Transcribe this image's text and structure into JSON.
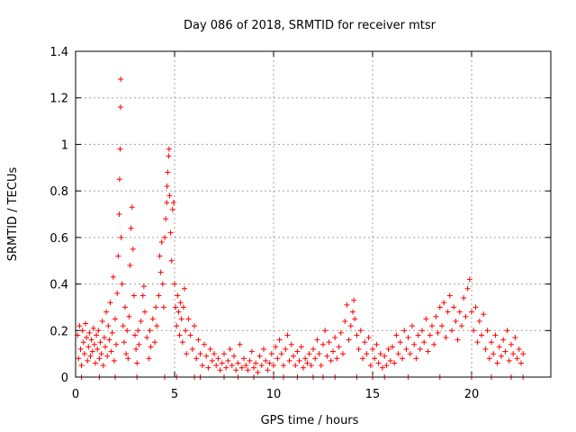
{
  "chart_data": {
    "type": "scatter",
    "title": "Day 086 of 2018, SRMTID for receiver mtsr",
    "xlabel": "GPS time / hours",
    "ylabel": "SRMTID / TECUs",
    "xlim": [
      0,
      24
    ],
    "ylim": [
      0,
      1.4
    ],
    "x_ticks": [
      0,
      5,
      10,
      15,
      20
    ],
    "y_ticks": [
      0,
      0.2,
      0.4,
      0.6,
      0.8,
      1,
      1.2,
      1.4
    ],
    "x_tick_labels": [
      "0",
      "5",
      "10",
      "15",
      "20"
    ],
    "y_tick_labels": [
      "0",
      "0.2",
      "0.4",
      "0.6",
      "0.8",
      "1",
      "1.2",
      "1.4"
    ],
    "grid": true,
    "marker": "+",
    "color": "#ff0000",
    "series": [
      {
        "name": "SRMTID",
        "points": [
          [
            0.1,
            0.18
          ],
          [
            0.15,
            0.08
          ],
          [
            0.2,
            0.22
          ],
          [
            0.25,
            0.12
          ],
          [
            0.3,
            0.05
          ],
          [
            0.35,
            0.2
          ],
          [
            0.4,
            0.15
          ],
          [
            0.45,
            0.1
          ],
          [
            0.5,
            0.23
          ],
          [
            0.55,
            0.17
          ],
          [
            0.6,
            0.07
          ],
          [
            0.65,
            0.13
          ],
          [
            0.7,
            0.19
          ],
          [
            0.75,
            0.09
          ],
          [
            0.8,
            0.16
          ],
          [
            0.85,
            0.11
          ],
          [
            0.9,
            0.21
          ],
          [
            0.95,
            0.14
          ],
          [
            1.0,
            0.06
          ],
          [
            1.05,
            0.18
          ],
          [
            1.1,
            0.12
          ],
          [
            1.15,
            0.2
          ],
          [
            1.2,
            0.08
          ],
          [
            1.25,
            0.15
          ],
          [
            1.3,
            0.1
          ],
          [
            1.35,
            0.24
          ],
          [
            1.4,
            0.05
          ],
          [
            1.45,
            0.17
          ],
          [
            1.5,
            0.13
          ],
          [
            1.55,
            0.28
          ],
          [
            1.6,
            0.09
          ],
          [
            1.65,
            0.22
          ],
          [
            1.7,
            0.16
          ],
          [
            1.75,
            0.32
          ],
          [
            1.8,
            0.11
          ],
          [
            1.85,
            0.19
          ],
          [
            1.9,
            0.43
          ],
          [
            1.95,
            0.07
          ],
          [
            2.0,
            0.25
          ],
          [
            2.05,
            0.14
          ],
          [
            2.1,
            0.36
          ],
          [
            2.15,
            0.52
          ],
          [
            2.2,
            0.7
          ],
          [
            2.22,
            0.85
          ],
          [
            2.25,
            0.98
          ],
          [
            2.27,
            1.16
          ],
          [
            2.28,
            1.28
          ],
          [
            2.3,
            0.6
          ],
          [
            2.35,
            0.4
          ],
          [
            2.4,
            0.22
          ],
          [
            2.45,
            0.15
          ],
          [
            2.5,
            0.3
          ],
          [
            2.55,
            0.1
          ],
          [
            2.6,
            0.2
          ],
          [
            2.65,
            0.08
          ],
          [
            2.7,
            0.26
          ],
          [
            2.75,
            0.48
          ],
          [
            2.8,
            0.64
          ],
          [
            2.85,
            0.73
          ],
          [
            2.9,
            0.55
          ],
          [
            2.95,
            0.35
          ],
          [
            3.0,
            0.18
          ],
          [
            3.05,
            0.12
          ],
          [
            3.1,
            0.06
          ],
          [
            3.15,
            0.2
          ],
          [
            3.2,
            0.14
          ],
          [
            3.3,
            0.24
          ],
          [
            3.4,
            0.35
          ],
          [
            3.45,
            0.39
          ],
          [
            3.5,
            0.28
          ],
          [
            3.6,
            0.17
          ],
          [
            3.7,
            0.08
          ],
          [
            3.75,
            0.2
          ],
          [
            3.8,
            0.13
          ],
          [
            3.9,
            0.25
          ],
          [
            4.0,
            0.15
          ],
          [
            4.05,
            0.3
          ],
          [
            4.1,
            0.22
          ],
          [
            4.2,
            0.35
          ],
          [
            4.25,
            0.52
          ],
          [
            4.3,
            0.45
          ],
          [
            4.35,
            0.58
          ],
          [
            4.4,
            0.4
          ],
          [
            4.45,
            0.3
          ],
          [
            4.5,
            0.6
          ],
          [
            4.55,
            0.68
          ],
          [
            4.6,
            0.75
          ],
          [
            4.62,
            0.82
          ],
          [
            4.65,
            0.88
          ],
          [
            4.7,
            0.95
          ],
          [
            4.72,
            0.98
          ],
          [
            4.75,
            0.78
          ],
          [
            4.8,
            0.62
          ],
          [
            4.85,
            0.5
          ],
          [
            4.9,
            0.72
          ],
          [
            4.95,
            0.75
          ],
          [
            5.0,
            0.4
          ],
          [
            5.05,
            0.3
          ],
          [
            5.1,
            0.22
          ],
          [
            5.15,
            0.35
          ],
          [
            5.2,
            0.28
          ],
          [
            5.25,
            0.18
          ],
          [
            5.3,
            0.32
          ],
          [
            5.35,
            0.25
          ],
          [
            5.4,
            0.15
          ],
          [
            5.45,
            0.3
          ],
          [
            5.5,
            0.38
          ],
          [
            5.55,
            0.2
          ],
          [
            5.6,
            0.1
          ],
          [
            5.7,
            0.25
          ],
          [
            5.8,
            0.18
          ],
          [
            5.9,
            0.12
          ],
          [
            6.0,
            0.22
          ],
          [
            6.1,
            0.08
          ],
          [
            6.2,
            0.16
          ],
          [
            6.3,
            0.1
          ],
          [
            6.4,
            0.05
          ],
          [
            6.5,
            0.14
          ],
          [
            6.6,
            0.09
          ],
          [
            6.7,
            0.04
          ],
          [
            6.8,
            0.12
          ],
          [
            6.9,
            0.07
          ],
          [
            7.0,
            0.1
          ],
          [
            7.1,
            0.05
          ],
          [
            7.2,
            0.08
          ],
          [
            7.3,
            0.03
          ],
          [
            7.4,
            0.06
          ],
          [
            7.5,
            0.1
          ],
          [
            7.6,
            0.04
          ],
          [
            7.7,
            0.07
          ],
          [
            7.8,
            0.12
          ],
          [
            7.9,
            0.05
          ],
          [
            8.0,
            0.09
          ],
          [
            8.1,
            0.03
          ],
          [
            8.2,
            0.06
          ],
          [
            8.3,
            0.14
          ],
          [
            8.4,
            0.04
          ],
          [
            8.5,
            0.08
          ],
          [
            8.6,
            0.05
          ],
          [
            8.7,
            0.03
          ],
          [
            8.8,
            0.07
          ],
          [
            8.9,
            0.11
          ],
          [
            9.0,
            0.04
          ],
          [
            9.1,
            0.06
          ],
          [
            9.2,
            0.02
          ],
          [
            9.3,
            0.09
          ],
          [
            9.4,
            0.05
          ],
          [
            9.5,
            0.12
          ],
          [
            9.6,
            0.07
          ],
          [
            9.7,
            0.03
          ],
          [
            9.8,
            0.06
          ],
          [
            9.9,
            0.1
          ],
          [
            10.0,
            0.05
          ],
          [
            10.1,
            0.13
          ],
          [
            10.2,
            0.08
          ],
          [
            10.3,
            0.16
          ],
          [
            10.4,
            0.1
          ],
          [
            10.5,
            0.05
          ],
          [
            10.6,
            0.12
          ],
          [
            10.7,
            0.18
          ],
          [
            10.8,
            0.07
          ],
          [
            10.9,
            0.14
          ],
          [
            11.0,
            0.09
          ],
          [
            11.1,
            0.05
          ],
          [
            11.2,
            0.11
          ],
          [
            11.3,
            0.07
          ],
          [
            11.4,
            0.13
          ],
          [
            11.5,
            0.04
          ],
          [
            11.6,
            0.08
          ],
          [
            11.7,
            0.06
          ],
          [
            11.8,
            0.1
          ],
          [
            11.9,
            0.05
          ],
          [
            12.0,
            0.12
          ],
          [
            12.1,
            0.08
          ],
          [
            12.2,
            0.16
          ],
          [
            12.3,
            0.1
          ],
          [
            12.4,
            0.05
          ],
          [
            12.5,
            0.14
          ],
          [
            12.6,
            0.2
          ],
          [
            12.7,
            0.09
          ],
          [
            12.8,
            0.15
          ],
          [
            12.9,
            0.07
          ],
          [
            13.0,
            0.11
          ],
          [
            13.1,
            0.17
          ],
          [
            13.2,
            0.08
          ],
          [
            13.3,
            0.13
          ],
          [
            13.4,
            0.19
          ],
          [
            13.5,
            0.1
          ],
          [
            13.6,
            0.24
          ],
          [
            13.7,
            0.31
          ],
          [
            13.8,
            0.16
          ],
          [
            13.9,
            0.22
          ],
          [
            14.0,
            0.28
          ],
          [
            14.05,
            0.33
          ],
          [
            14.1,
            0.25
          ],
          [
            14.2,
            0.18
          ],
          [
            14.3,
            0.12
          ],
          [
            14.4,
            0.2
          ],
          [
            14.5,
            0.08
          ],
          [
            14.6,
            0.15
          ],
          [
            14.7,
            0.1
          ],
          [
            14.8,
            0.17
          ],
          [
            14.9,
            0.05
          ],
          [
            15.0,
            0.12
          ],
          [
            15.1,
            0.08
          ],
          [
            15.2,
            0.14
          ],
          [
            15.3,
            0.06
          ],
          [
            15.4,
            0.1
          ],
          [
            15.5,
            0.04
          ],
          [
            15.6,
            0.09
          ],
          [
            15.7,
            0.05
          ],
          [
            15.8,
            0.12
          ],
          [
            15.9,
            0.07
          ],
          [
            16.0,
            0.13
          ],
          [
            16.1,
            0.06
          ],
          [
            16.2,
            0.18
          ],
          [
            16.3,
            0.1
          ],
          [
            16.4,
            0.15
          ],
          [
            16.5,
            0.08
          ],
          [
            16.6,
            0.2
          ],
          [
            16.7,
            0.12
          ],
          [
            16.8,
            0.17
          ],
          [
            16.9,
            0.1
          ],
          [
            17.0,
            0.22
          ],
          [
            17.1,
            0.14
          ],
          [
            17.2,
            0.08
          ],
          [
            17.3,
            0.18
          ],
          [
            17.4,
            0.12
          ],
          [
            17.5,
            0.2
          ],
          [
            17.6,
            0.15
          ],
          [
            17.7,
            0.25
          ],
          [
            17.8,
            0.11
          ],
          [
            17.9,
            0.18
          ],
          [
            18.0,
            0.22
          ],
          [
            18.1,
            0.14
          ],
          [
            18.2,
            0.26
          ],
          [
            18.3,
            0.19
          ],
          [
            18.4,
            0.3
          ],
          [
            18.5,
            0.22
          ],
          [
            18.6,
            0.32
          ],
          [
            18.7,
            0.17
          ],
          [
            18.8,
            0.28
          ],
          [
            18.9,
            0.35
          ],
          [
            19.0,
            0.2
          ],
          [
            19.1,
            0.3
          ],
          [
            19.2,
            0.24
          ],
          [
            19.3,
            0.16
          ],
          [
            19.4,
            0.28
          ],
          [
            19.5,
            0.22
          ],
          [
            19.6,
            0.34
          ],
          [
            19.7,
            0.26
          ],
          [
            19.8,
            0.38
          ],
          [
            19.9,
            0.42
          ],
          [
            20.0,
            0.28
          ],
          [
            20.1,
            0.2
          ],
          [
            20.2,
            0.3
          ],
          [
            20.3,
            0.15
          ],
          [
            20.4,
            0.24
          ],
          [
            20.5,
            0.18
          ],
          [
            20.6,
            0.27
          ],
          [
            20.7,
            0.12
          ],
          [
            20.8,
            0.2
          ],
          [
            20.9,
            0.08
          ],
          [
            21.0,
            0.15
          ],
          [
            21.1,
            0.1
          ],
          [
            21.2,
            0.18
          ],
          [
            21.3,
            0.06
          ],
          [
            21.4,
            0.13
          ],
          [
            21.5,
            0.09
          ],
          [
            21.6,
            0.16
          ],
          [
            21.7,
            0.11
          ],
          [
            21.8,
            0.2
          ],
          [
            21.9,
            0.07
          ],
          [
            22.0,
            0.14
          ],
          [
            22.1,
            0.1
          ],
          [
            22.2,
            0.17
          ],
          [
            22.3,
            0.08
          ],
          [
            22.4,
            0.12
          ],
          [
            22.5,
            0.06
          ],
          [
            22.6,
            0.1
          ],
          [
            0.3,
            0.0
          ],
          [
            1.2,
            0.0
          ],
          [
            2.0,
            0.0
          ],
          [
            3.1,
            0.0
          ],
          [
            4.5,
            0.0
          ],
          [
            5.1,
            0.0
          ],
          [
            6.0,
            0.0
          ],
          [
            6.3,
            0.0
          ],
          [
            7.5,
            0.0
          ],
          [
            8.2,
            0.0
          ],
          [
            9.0,
            0.0
          ],
          [
            10.0,
            0.0
          ],
          [
            10.5,
            0.0
          ],
          [
            11.2,
            0.0
          ],
          [
            12.0,
            0.0
          ],
          [
            12.5,
            0.0
          ],
          [
            13.1,
            0.0
          ],
          [
            14.2,
            0.0
          ],
          [
            15.0,
            0.0
          ],
          [
            15.6,
            0.0
          ],
          [
            16.8,
            0.0
          ],
          [
            18.4,
            0.0
          ],
          [
            20.0,
            0.0
          ],
          [
            21.0,
            0.0
          ],
          [
            22.0,
            0.0
          ],
          [
            22.6,
            0.0
          ]
        ]
      }
    ]
  }
}
